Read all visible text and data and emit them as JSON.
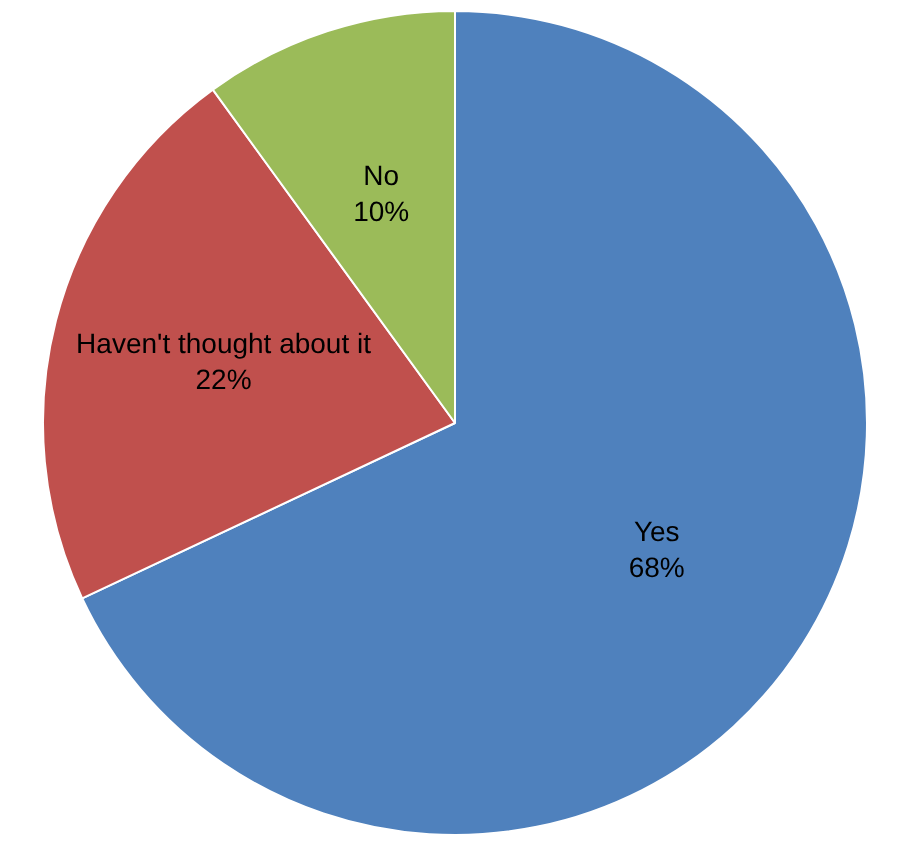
{
  "chart_data": {
    "type": "pie",
    "categories": [
      "Yes",
      "Haven't thought about it",
      "No"
    ],
    "values": [
      68,
      22,
      10
    ],
    "colors": [
      "#4f81bd",
      "#c0504d",
      "#9bbb59"
    ],
    "value_labels": [
      "68%",
      "22%",
      "10%"
    ],
    "legend": false
  }
}
